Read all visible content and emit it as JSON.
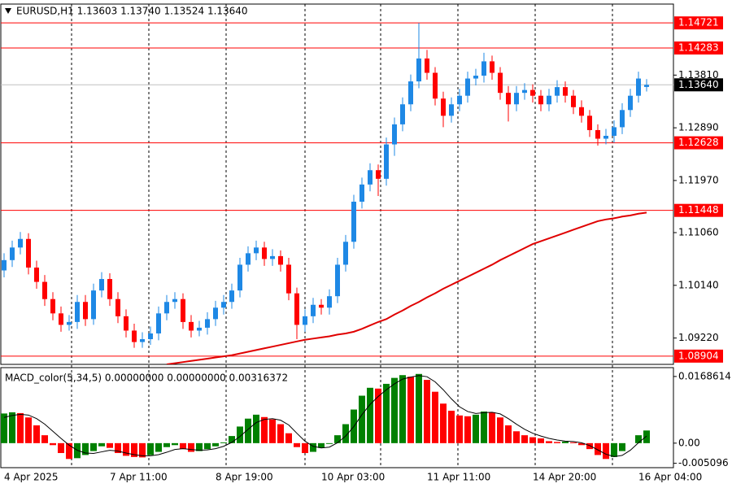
{
  "chart_data": [
    {
      "type": "candlestick",
      "title": "EURUSD,H1  1.13603 1.13740 1.13524 1.13640",
      "categories": [
        "4 Apr 2025",
        null,
        null,
        null,
        null,
        null,
        null,
        null,
        null,
        null,
        null,
        null,
        null,
        "7 Apr 11:00",
        null,
        null,
        null,
        null,
        null,
        null,
        null,
        null,
        null,
        null,
        null,
        null,
        "8 Apr 19:00",
        null,
        null,
        null,
        null,
        null,
        null,
        null,
        null,
        null,
        null,
        null,
        null,
        "10 Apr 03:00",
        null,
        null,
        null,
        null,
        null,
        null,
        null,
        null,
        null,
        null,
        null,
        null,
        "11 Apr 11:00",
        null,
        null,
        null,
        null,
        null,
        null,
        null,
        null,
        null,
        null,
        null,
        null,
        "14 Apr 20:00",
        null,
        null,
        null,
        null,
        null,
        null,
        null,
        null,
        null,
        null,
        null,
        null,
        "16 Apr 04:00",
        null
      ],
      "open": [
        1.104,
        1.1058,
        1.108,
        1.1095,
        1.1045,
        1.102,
        1.099,
        1.0965,
        1.0945,
        1.095,
        1.0985,
        1.0955,
        1.1005,
        1.1025,
        1.099,
        1.096,
        1.0935,
        1.0915,
        1.092,
        1.093,
        1.0965,
        1.0985,
        1.099,
        1.095,
        1.0935,
        1.094,
        1.0955,
        1.0975,
        1.0985,
        1.1005,
        1.105,
        1.107,
        1.108,
        1.106,
        1.1065,
        1.105,
        1.1,
        1.0945,
        1.096,
        1.098,
        1.0975,
        1.0995,
        1.105,
        1.109,
        1.116,
        1.119,
        1.1215,
        1.12,
        1.126,
        1.1295,
        1.133,
        1.137,
        1.141,
        1.1385,
        1.134,
        1.131,
        1.133,
        1.1345,
        1.1375,
        1.138,
        1.1405,
        1.1385,
        1.135,
        1.133,
        1.135,
        1.1355,
        1.1345,
        1.133,
        1.1345,
        1.136,
        1.1345,
        1.1325,
        1.131,
        1.1285,
        1.127,
        1.1275,
        1.129,
        1.132,
        1.1345,
        1.13603
      ],
      "high": [
        1.107,
        1.1092,
        1.1107,
        1.1105,
        1.1057,
        1.1032,
        1.1002,
        1.0977,
        1.0962,
        1.0997,
        1.0997,
        1.1017,
        1.1037,
        1.1035,
        1.1002,
        1.0972,
        1.0947,
        1.0932,
        1.0942,
        1.0977,
        1.0997,
        1.1002,
        1.1,
        1.0962,
        1.0952,
        1.0967,
        1.0987,
        1.0997,
        1.1017,
        1.1062,
        1.1082,
        1.1092,
        1.109,
        1.1077,
        1.1075,
        1.1062,
        1.101,
        1.0972,
        1.0992,
        1.099,
        1.1007,
        1.1062,
        1.1102,
        1.1172,
        1.1202,
        1.1227,
        1.1225,
        1.1272,
        1.1307,
        1.1342,
        1.1382,
        1.1472,
        1.1425,
        1.1395,
        1.1352,
        1.1342,
        1.1357,
        1.1387,
        1.1392,
        1.142,
        1.1415,
        1.1395,
        1.1362,
        1.1362,
        1.1367,
        1.1365,
        1.1355,
        1.1357,
        1.1372,
        1.137,
        1.1355,
        1.1337,
        1.132,
        1.1295,
        1.1287,
        1.1302,
        1.1332,
        1.1357,
        1.1387,
        1.1374
      ],
      "low": [
        1.1028,
        1.1046,
        1.1068,
        1.1033,
        1.1008,
        1.0978,
        1.0953,
        1.0933,
        1.0935,
        1.0938,
        1.0943,
        1.0945,
        1.0993,
        1.0978,
        1.0948,
        1.0923,
        1.0905,
        1.0905,
        1.091,
        1.0918,
        1.0953,
        1.0973,
        1.0938,
        1.0923,
        1.0925,
        1.0928,
        1.0943,
        1.0963,
        1.0973,
        1.0993,
        1.1038,
        1.1058,
        1.1048,
        1.1048,
        1.1038,
        1.0988,
        1.092,
        1.0933,
        1.0948,
        1.0963,
        1.0963,
        1.0983,
        1.1038,
        1.1078,
        1.1148,
        1.1178,
        1.117,
        1.1188,
        1.124,
        1.1283,
        1.1318,
        1.1358,
        1.1373,
        1.1328,
        1.129,
        1.1298,
        1.1318,
        1.1333,
        1.1363,
        1.1368,
        1.1373,
        1.1338,
        1.13,
        1.1318,
        1.1338,
        1.1333,
        1.1318,
        1.1318,
        1.1333,
        1.1333,
        1.1313,
        1.1298,
        1.1273,
        1.1258,
        1.126,
        1.1263,
        1.1278,
        1.1308,
        1.1333,
        1.13524
      ],
      "close": [
        1.1058,
        1.108,
        1.1095,
        1.1045,
        1.102,
        1.099,
        1.0965,
        1.0945,
        1.095,
        1.0985,
        1.0955,
        1.1005,
        1.1025,
        1.099,
        1.096,
        1.0935,
        1.0915,
        1.092,
        1.093,
        1.0965,
        1.0985,
        1.099,
        1.095,
        1.0935,
        1.094,
        1.0955,
        1.0975,
        1.0985,
        1.1005,
        1.105,
        1.107,
        1.108,
        1.106,
        1.1065,
        1.105,
        1.1,
        1.0945,
        1.096,
        1.098,
        1.0975,
        1.0995,
        1.105,
        1.109,
        1.116,
        1.119,
        1.1215,
        1.12,
        1.126,
        1.1295,
        1.133,
        1.137,
        1.141,
        1.1385,
        1.134,
        1.131,
        1.133,
        1.1345,
        1.1375,
        1.138,
        1.1405,
        1.1385,
        1.135,
        1.133,
        1.135,
        1.1355,
        1.1345,
        1.133,
        1.1345,
        1.136,
        1.1345,
        1.1325,
        1.131,
        1.1285,
        1.127,
        1.1275,
        1.129,
        1.132,
        1.1345,
        1.1375,
        1.1364
      ],
      "up_color": "#1e88e5",
      "down_color": "#ff0000",
      "ma": {
        "color": "#e00000",
        "values": [
          null,
          null,
          null,
          null,
          null,
          null,
          null,
          null,
          null,
          null,
          null,
          null,
          null,
          null,
          null,
          null,
          null,
          null,
          null,
          null,
          1.0876,
          1.0878,
          1.088,
          1.0882,
          1.0884,
          1.0886,
          1.0888,
          1.089,
          1.0892,
          1.0895,
          1.0898,
          1.0901,
          1.0904,
          1.0907,
          1.091,
          1.0913,
          1.0916,
          1.0919,
          1.0921,
          1.0923,
          1.0925,
          1.0928,
          1.093,
          1.0933,
          1.0938,
          1.0944,
          1.095,
          1.0955,
          1.0963,
          1.097,
          1.0978,
          1.0985,
          1.0993,
          1.1,
          1.1008,
          1.1015,
          1.1022,
          1.1029,
          1.1036,
          1.1043,
          1.105,
          1.1058,
          1.1065,
          1.1072,
          1.1079,
          1.1086,
          1.1091,
          1.1096,
          1.1101,
          1.1106,
          1.1111,
          1.1116,
          1.1121,
          1.1126,
          1.1129,
          1.1131,
          1.1134,
          1.1136,
          1.1139,
          1.1141
        ]
      },
      "ylim": [
        1.0876,
        1.1505
      ],
      "yticks": [
        {
          "value": 1.1381,
          "label": "1.13810"
        },
        {
          "value": 1.1289,
          "label": "1.12890"
        },
        {
          "value": 1.1197,
          "label": "1.11970"
        },
        {
          "value": 1.1106,
          "label": "1.11060"
        },
        {
          "value": 1.1014,
          "label": "1.10140"
        },
        {
          "value": 1.0922,
          "label": "1.09220"
        }
      ],
      "levels": [
        1.14721,
        1.14283,
        1.12628,
        1.11448,
        1.08904
      ],
      "level_color": "#ff0000",
      "last_price": {
        "value": 1.1364,
        "label": "1.13640"
      }
    },
    {
      "type": "macd",
      "title": "MACD_color(5,34,5) 0.00000000 0.00000000 0.00316372",
      "values": [
        0.0075,
        0.0078,
        0.0076,
        0.0065,
        0.0045,
        0.002,
        -0.0005,
        -0.0025,
        -0.004,
        -0.0038,
        -0.003,
        -0.002,
        -0.0008,
        -0.0012,
        -0.0025,
        -0.0032,
        -0.0035,
        -0.0036,
        -0.003,
        -0.0022,
        -0.001,
        -0.0005,
        -0.0015,
        -0.0022,
        -0.002,
        -0.0015,
        -0.0008,
        0.0002,
        0.0018,
        0.0042,
        0.0062,
        0.0072,
        0.0066,
        0.006,
        0.0048,
        0.0025,
        -0.001,
        -0.0025,
        -0.0022,
        -0.0012,
        -0.0002,
        0.002,
        0.0048,
        0.0085,
        0.012,
        0.014,
        0.0138,
        0.015,
        0.0165,
        0.0172,
        0.0168,
        0.0175,
        0.016,
        0.013,
        0.01,
        0.0082,
        0.007,
        0.0068,
        0.0072,
        0.008,
        0.0078,
        0.0065,
        0.0045,
        0.003,
        0.002,
        0.0015,
        0.0012,
        0.0005,
        0.0003,
        0.0004,
        0.0002,
        -0.0005,
        -0.0015,
        -0.003,
        -0.004,
        -0.0035,
        -0.002,
        0.0,
        0.002,
        0.0032
      ],
      "signal": [
        0.0065,
        0.007,
        0.0073,
        0.0071,
        0.0062,
        0.0048,
        0.003,
        0.0012,
        -0.0005,
        -0.0018,
        -0.0025,
        -0.0026,
        -0.0022,
        -0.0018,
        -0.002,
        -0.0025,
        -0.0029,
        -0.0032,
        -0.0032,
        -0.0029,
        -0.0023,
        -0.0016,
        -0.0014,
        -0.0016,
        -0.0018,
        -0.0017,
        -0.0014,
        -0.0008,
        0.0002,
        0.0017,
        0.0035,
        0.0052,
        0.006,
        0.0062,
        0.0058,
        0.0046,
        0.0025,
        0.0005,
        -0.0008,
        -0.0012,
        -0.001,
        0.0001,
        0.0018,
        0.0042,
        0.0072,
        0.0098,
        0.0118,
        0.0135,
        0.015,
        0.0162,
        0.0167,
        0.0171,
        0.0168,
        0.0155,
        0.0135,
        0.0112,
        0.0092,
        0.008,
        0.0075,
        0.0077,
        0.0078,
        0.0074,
        0.0062,
        0.0048,
        0.0035,
        0.0025,
        0.0018,
        0.0012,
        0.0008,
        0.0005,
        0.0004,
        0.0001,
        -0.0006,
        -0.0017,
        -0.0028,
        -0.0034,
        -0.0031,
        -0.0018,
        0.0001,
        0.0018
      ],
      "up_color": "#008000",
      "down_color": "#ff0000",
      "signal_color": "#000000",
      "ylim": [
        -0.0062,
        0.0191
      ],
      "yticks": [
        0.0168614,
        {
          "value": 0,
          "label": "0.00"
        },
        -0.005096
      ]
    }
  ]
}
